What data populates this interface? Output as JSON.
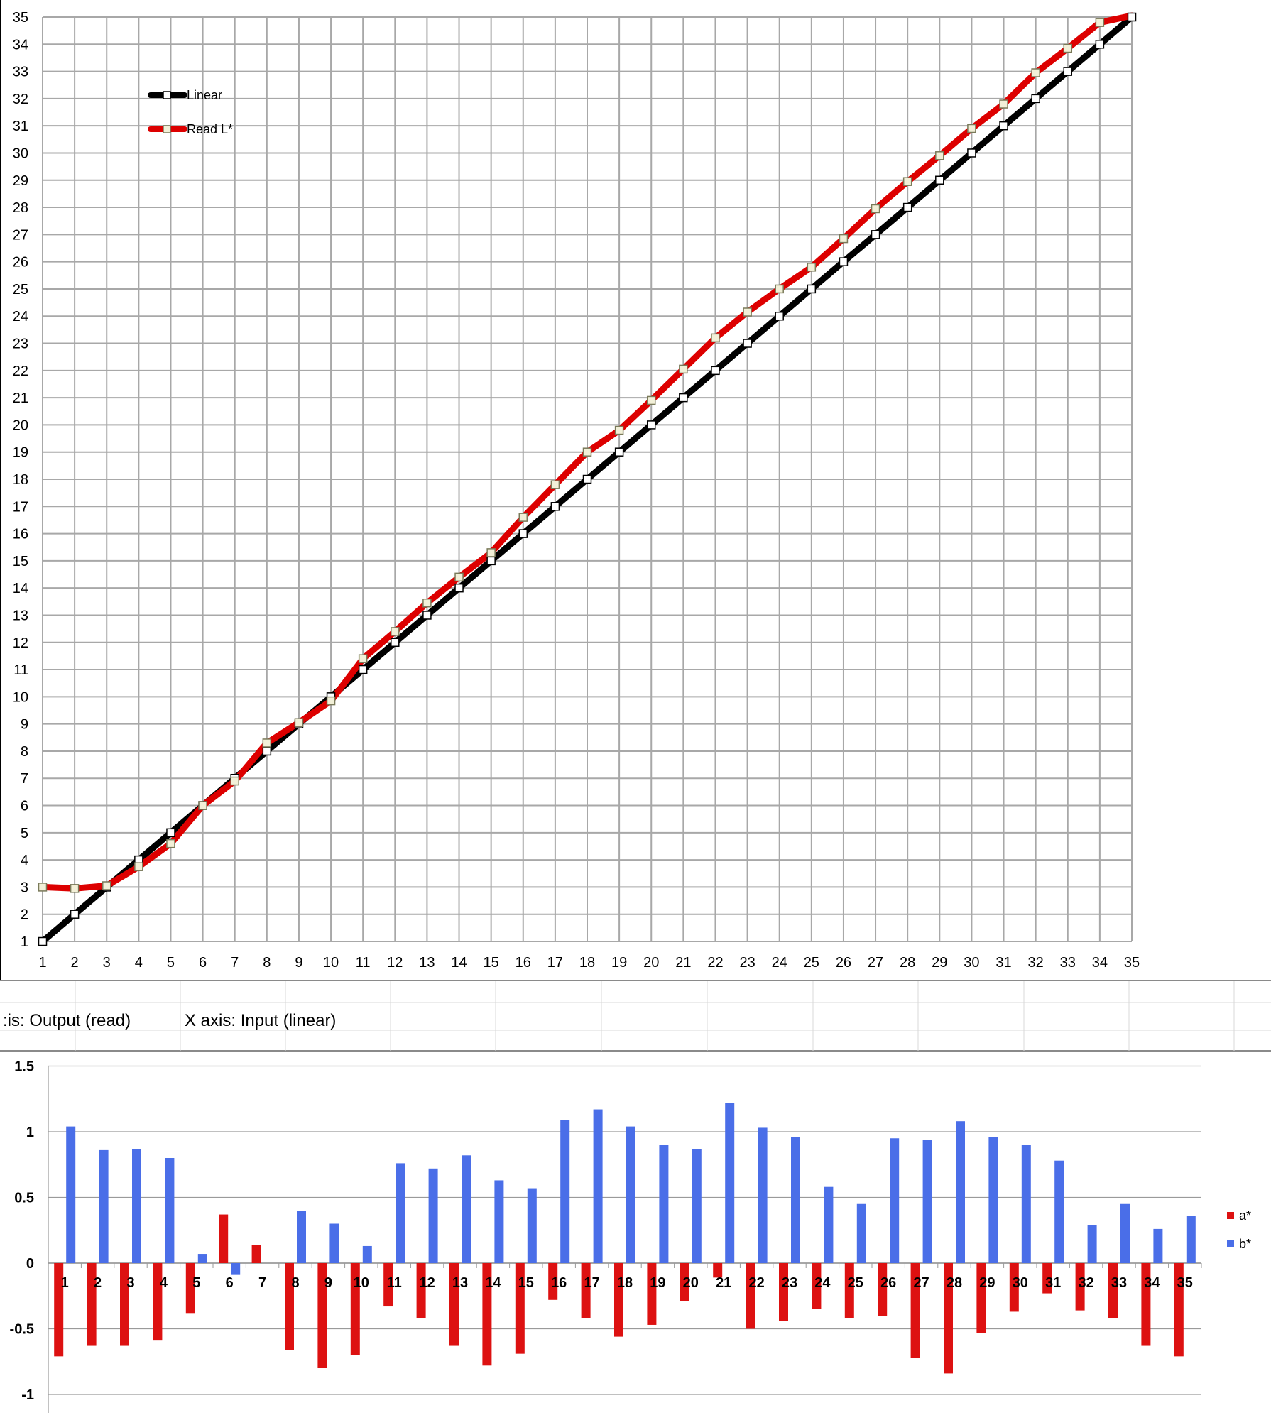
{
  "sheet": {
    "cell_a": ":is: Output (read)",
    "cell_b": "X axis: Input (linear)"
  },
  "chart_data": [
    {
      "type": "line",
      "title": "",
      "xlabel": "",
      "ylabel": "",
      "x": [
        1,
        2,
        3,
        4,
        5,
        6,
        7,
        8,
        9,
        10,
        11,
        12,
        13,
        14,
        15,
        16,
        17,
        18,
        19,
        20,
        21,
        22,
        23,
        24,
        25,
        26,
        27,
        28,
        29,
        30,
        31,
        32,
        33,
        34,
        35
      ],
      "xlim": [
        1,
        35
      ],
      "ylim": [
        1,
        35
      ],
      "grid": true,
      "legend_position": "top-left",
      "series": [
        {
          "name": "Linear",
          "color": "#000000",
          "marker_fill": "#ffffff",
          "values": [
            1,
            2,
            3,
            4,
            5,
            6,
            7,
            8,
            9,
            10,
            11,
            12,
            13,
            14,
            15,
            16,
            17,
            18,
            19,
            20,
            21,
            22,
            23,
            24,
            25,
            26,
            27,
            28,
            29,
            30,
            31,
            32,
            33,
            34,
            35
          ]
        },
        {
          "name": "Read L*",
          "color": "#dd0000",
          "marker_fill": "#f2f0d8",
          "values": [
            3.0,
            2.95,
            3.05,
            3.75,
            4.6,
            6.0,
            6.9,
            8.3,
            9.05,
            9.85,
            11.4,
            12.4,
            13.45,
            14.4,
            15.3,
            16.6,
            17.8,
            19.0,
            19.8,
            20.9,
            22.05,
            23.2,
            24.15,
            25.0,
            25.8,
            26.85,
            27.95,
            28.95,
            29.9,
            30.9,
            31.8,
            32.95,
            33.85,
            34.8,
            35.3
          ]
        }
      ]
    },
    {
      "type": "bar",
      "title": "",
      "xlabel": "",
      "ylabel": "",
      "categories": [
        "1",
        "2",
        "3",
        "4",
        "5",
        "6",
        "7",
        "8",
        "9",
        "10",
        "11",
        "12",
        "13",
        "14",
        "15",
        "16",
        "17",
        "18",
        "19",
        "20",
        "21",
        "22",
        "23",
        "24",
        "25",
        "26",
        "27",
        "28",
        "29",
        "30",
        "31",
        "32",
        "33",
        "34",
        "35"
      ],
      "ylim": [
        -1,
        1.5
      ],
      "yticks": [
        "1.5",
        "1",
        "0.5",
        "0",
        "-0.5",
        "-1"
      ],
      "grid": true,
      "legend_position": "right",
      "series": [
        {
          "name": "a*",
          "color": "#dd1111",
          "values": [
            -0.71,
            -0.63,
            -0.63,
            -0.59,
            -0.38,
            0.37,
            0.14,
            -0.66,
            -0.8,
            -0.7,
            -0.33,
            -0.42,
            -0.63,
            -0.78,
            -0.69,
            -0.28,
            -0.42,
            -0.56,
            -0.47,
            -0.29,
            -0.11,
            -0.5,
            -0.44,
            -0.35,
            -0.42,
            -0.4,
            -0.72,
            -0.84,
            -0.53,
            -0.37,
            -0.23,
            -0.36,
            -0.42,
            -0.63,
            -0.71
          ]
        },
        {
          "name": "b*",
          "color": "#4a6ee8",
          "values": [
            1.04,
            0.86,
            0.87,
            0.8,
            0.07,
            -0.09,
            0,
            0.4,
            0.3,
            0.13,
            0.76,
            0.72,
            0.82,
            0.63,
            0.57,
            1.09,
            1.17,
            1.04,
            0.9,
            0.87,
            1.22,
            1.03,
            0.96,
            0.58,
            0.45,
            0.95,
            0.94,
            1.08,
            0.96,
            0.9,
            0.78,
            0.29,
            0.45,
            0.26,
            0.36
          ]
        }
      ]
    }
  ]
}
